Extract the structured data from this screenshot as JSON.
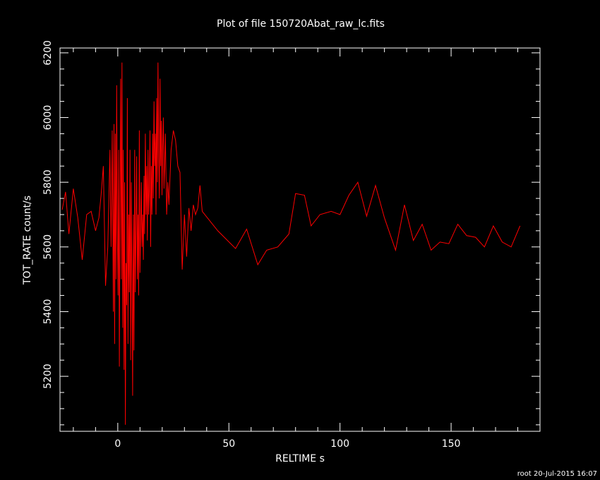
{
  "chart_data": {
    "type": "line",
    "title": "Plot of file 150720Abat_raw_lc.fits",
    "xlabel": "RELTIME  s",
    "ylabel": "TOT_RATE  count/s",
    "xlim": [
      -26,
      190
    ],
    "ylim": [
      5030,
      6215
    ],
    "xticks": [
      0,
      50,
      100,
      150
    ],
    "xtick_labels": [
      "0",
      "50",
      "100",
      "150"
    ],
    "yticks": [
      5200,
      5400,
      5600,
      5800,
      6000,
      6200
    ],
    "ytick_labels": [
      "5200",
      "5400",
      "5600",
      "5800",
      "6000",
      "6200"
    ],
    "grid": false,
    "line_color": "#ff0000",
    "background": "#000000",
    "series": [
      {
        "x": [
          -25,
          -23.5,
          -22,
          -20,
          -18,
          -16,
          -14,
          -12,
          -10,
          -8.5,
          -7.5,
          -6.5,
          -5.5,
          -4.5,
          -3.5,
          -3,
          -2.5,
          -2,
          -1.7,
          -1.4,
          -1.1,
          -0.8,
          -0.5,
          -0.2,
          0.1,
          0.4,
          0.7,
          1.0,
          1.3,
          1.6,
          1.9,
          2.2,
          2.5,
          2.8,
          3.1,
          3.4,
          3.7,
          4.0,
          4.3,
          4.6,
          4.9,
          5.2,
          5.5,
          5.8,
          6.1,
          6.4,
          6.7,
          7.0,
          7.3,
          7.6,
          7.9,
          8.2,
          8.5,
          8.8,
          9.1,
          9.4,
          9.7,
          10.0,
          10.3,
          10.6,
          10.9,
          11.2,
          11.5,
          11.8,
          12.1,
          12.4,
          12.7,
          13.0,
          13.3,
          13.6,
          13.9,
          14.2,
          14.5,
          14.8,
          15.1,
          15.4,
          15.7,
          16.0,
          16.3,
          16.6,
          16.9,
          17.2,
          17.5,
          17.8,
          18.1,
          18.4,
          18.7,
          19.0,
          19.3,
          19.6,
          19.9,
          20.2,
          20.5,
          20.8,
          21.1,
          21.4,
          21.7,
          22.0,
          22.5,
          23,
          24,
          25,
          26,
          27,
          28,
          29,
          30,
          31,
          32,
          33,
          34,
          35,
          36,
          37,
          38,
          45,
          53,
          58,
          63,
          67,
          72,
          77,
          80,
          84,
          87,
          91,
          96,
          100,
          104,
          108,
          112,
          116,
          120,
          125,
          129,
          133,
          137,
          141,
          145,
          149,
          153,
          157,
          161,
          165,
          169,
          173,
          177,
          181
        ],
        "values": [
          5715,
          5770,
          5640,
          5780,
          5690,
          5560,
          5700,
          5710,
          5650,
          5690,
          5760,
          5850,
          5480,
          5600,
          5900,
          5600,
          5960,
          5400,
          5980,
          5300,
          5950,
          5500,
          6100,
          5650,
          5450,
          5900,
          5230,
          5750,
          6120,
          5500,
          6170,
          5350,
          5900,
          5220,
          5800,
          5050,
          5550,
          5420,
          6060,
          5300,
          5700,
          5460,
          5900,
          5250,
          5800,
          5500,
          5140,
          5700,
          5280,
          5900,
          5460,
          5650,
          5880,
          5500,
          5700,
          5450,
          5960,
          5520,
          5650,
          5800,
          5600,
          5700,
          5560,
          5820,
          5640,
          5950,
          5700,
          5850,
          5620,
          5900,
          5700,
          5780,
          5960,
          5600,
          5850,
          5700,
          5950,
          5750,
          6050,
          5850,
          5950,
          5700,
          6060,
          5800,
          6170,
          5900,
          5750,
          6120,
          5850,
          5990,
          5760,
          5900,
          6000,
          5780,
          5850,
          5950,
          5820,
          5700,
          5800,
          5730,
          5900,
          5960,
          5930,
          5850,
          5830,
          5530,
          5700,
          5570,
          5720,
          5650,
          5730,
          5700,
          5720,
          5790,
          5710,
          5650,
          5595,
          5655,
          5545,
          5590,
          5600,
          5640,
          5765,
          5760,
          5665,
          5700,
          5710,
          5700,
          5760,
          5800,
          5695,
          5790,
          5690,
          5590,
          5730,
          5620,
          5670,
          5590,
          5615,
          5610,
          5670,
          5635,
          5630,
          5600,
          5665,
          5615,
          5600,
          5665
        ]
      }
    ]
  },
  "footer": "root 20-Jul-2015 16:07"
}
